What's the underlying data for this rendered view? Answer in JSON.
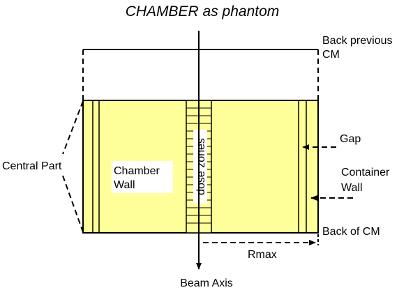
{
  "diagram": {
    "title": "CHAMBER as phantom",
    "labels": {
      "back_previous_line1": "Back previous",
      "back_previous_line2": "CM",
      "central_part": "Central Part",
      "chamber_wall_line1": "Chamber",
      "chamber_wall_line2": "Wall",
      "dose_zones": "dose zones",
      "gap": "Gap",
      "container_wall_line1": "Container",
      "container_wall_line2": "Wall",
      "back_of_cm": "Back of CM",
      "rmax": "Rmax",
      "beam_axis": "Beam Axis"
    },
    "colors": {
      "chamber_fill": "#ffff99",
      "line": "#000000",
      "label_box": "#ffffff"
    }
  }
}
